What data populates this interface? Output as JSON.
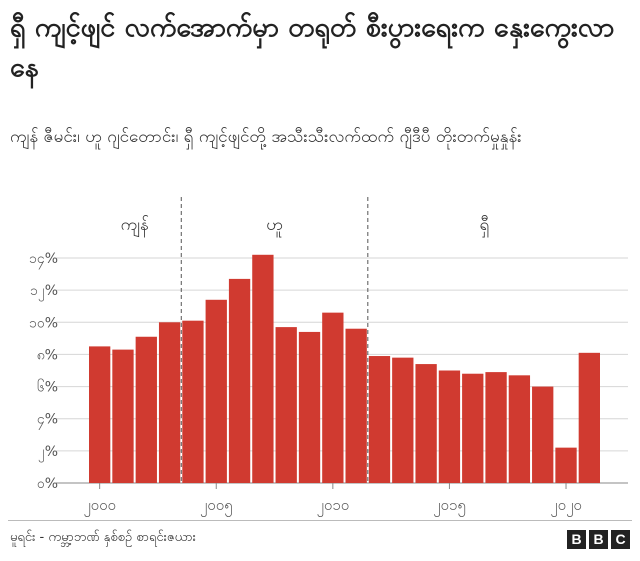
{
  "title": "ရှီ ကျင့်ဖျင် လက်အောက်မှာ တရုတ် စီးပွားရေးက နှေးကွေးလာနေ",
  "subtitle": "ကျန် ဇီမင်း၊ ဟူ ဂျင်တောင်း၊ ရှီ ကျင့်ဖျင်တို့ အသီးသီးလက်ထက် ဂျီဒီပီ တိုးတက်မှုနှုန်း",
  "source": "မူရင်း - ကမ္ဘာ့ဘဏ် နှစ်စဉ် စာရင်းဇယား",
  "logo_letters": [
    "B",
    "B",
    "C"
  ],
  "colors": {
    "bar": "#d03a30",
    "grid": "#d6d6d6",
    "divider": "#555555"
  },
  "chart_data": {
    "type": "bar",
    "x": [
      2000,
      2001,
      2002,
      2003,
      2004,
      2005,
      2006,
      2007,
      2008,
      2009,
      2010,
      2011,
      2012,
      2013,
      2014,
      2015,
      2016,
      2017,
      2018,
      2019,
      2020,
      2021
    ],
    "values": [
      8.5,
      8.3,
      9.1,
      10.0,
      10.1,
      11.4,
      12.7,
      14.2,
      9.7,
      9.4,
      10.6,
      9.6,
      7.9,
      7.8,
      7.4,
      7.0,
      6.8,
      6.9,
      6.7,
      6.0,
      2.2,
      8.1
    ],
    "ylim": [
      0,
      14
    ],
    "yticks": [
      0,
      2,
      4,
      6,
      8,
      10,
      12,
      14
    ],
    "ytick_labels": [
      "၀%",
      "၂%",
      "၄%",
      "၆%",
      "၈%",
      "၁၀%",
      "၁၂%",
      "၁၄%"
    ],
    "xticks": [
      2000,
      2005,
      2010,
      2015,
      2020
    ],
    "xtick_labels": [
      "၂၀၀၀",
      "၂၀၀၅",
      "၂၀၁၀",
      "၂၀၁၅",
      "၂၀၂၀"
    ],
    "grid": true,
    "eras": [
      {
        "label": "ကျန်",
        "start": 2000,
        "end": 2003
      },
      {
        "label": "ဟူ",
        "start": 2004,
        "end": 2011
      },
      {
        "label": "ရှီ",
        "start": 2012,
        "end": 2021
      }
    ]
  }
}
